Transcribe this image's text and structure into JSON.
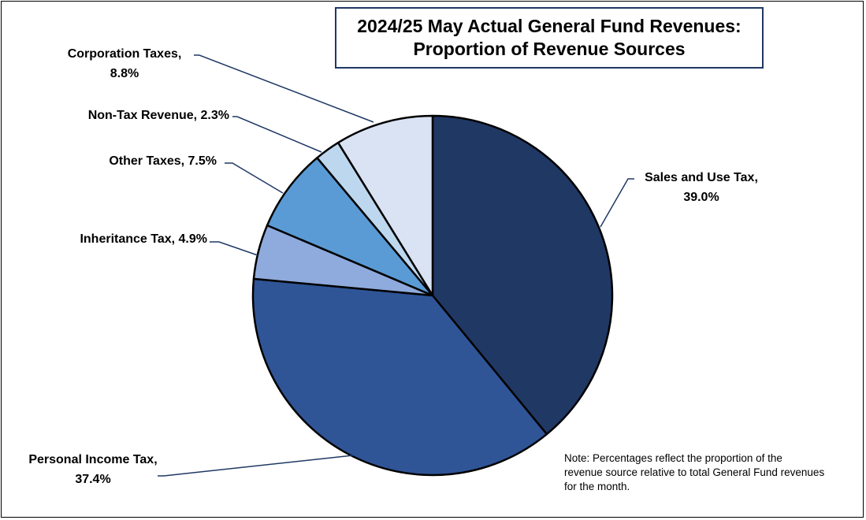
{
  "chart_data": {
    "type": "pie",
    "title": "2024/25 May Actual General Fund Revenues:",
    "subtitle": "Proportion of Revenue Sources",
    "slices": [
      {
        "name": "Sales and Use Tax",
        "value": 39.0,
        "label_lines": [
          "Sales and Use Tax,",
          "39.0%"
        ],
        "color": "#203864"
      },
      {
        "name": "Personal Income Tax",
        "value": 37.4,
        "label_lines": [
          "Personal Income Tax,",
          "37.4%"
        ],
        "color": "#2f5597"
      },
      {
        "name": "Inheritance Tax",
        "value": 4.9,
        "label_lines": [
          "Inheritance Tax, 4.9%"
        ],
        "color": "#8faadc"
      },
      {
        "name": "Other Taxes",
        "value": 7.5,
        "label_lines": [
          "Other Taxes, 7.5%"
        ],
        "color": "#5b9bd5"
      },
      {
        "name": "Non-Tax Revenue",
        "value": 2.3,
        "label_lines": [
          "Non-Tax Revenue, 2.3%"
        ],
        "color": "#bdd7ee"
      },
      {
        "name": "Corporation Taxes",
        "value": 8.8,
        "label_lines": [
          "Corporation Taxes,",
          "8.8%"
        ],
        "color": "#dae3f3"
      }
    ],
    "note_lines": [
      "Note: Percentages reflect the proportion of the",
      "revenue source relative to total General Fund revenues",
      "for the month."
    ]
  }
}
